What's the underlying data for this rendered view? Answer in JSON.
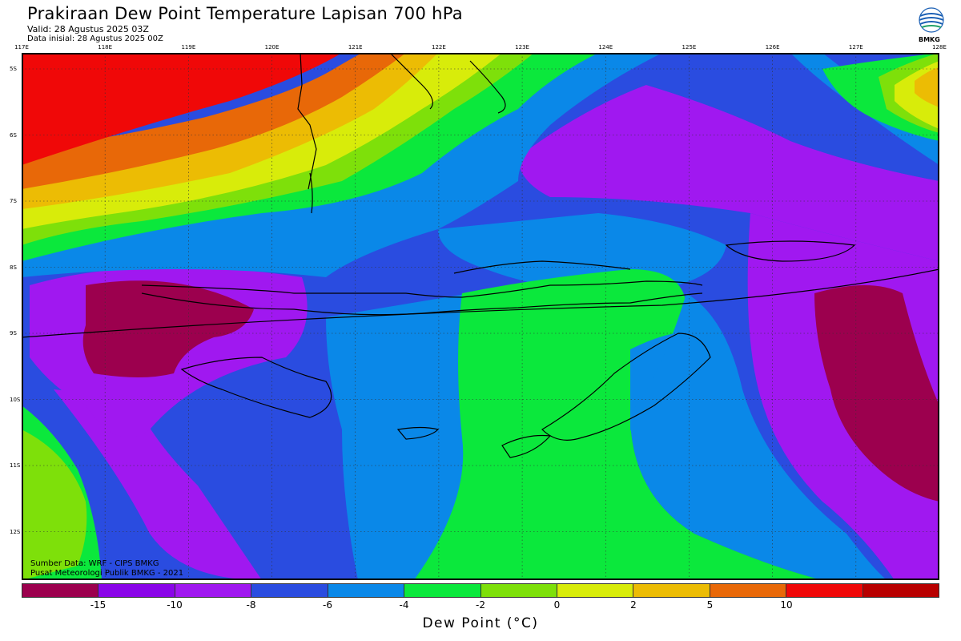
{
  "header": {
    "title": "Prakiraan Dew Point Temperature Lapisan 700 hPa",
    "valid": "Valid: 28 Agustus 2025 03Z",
    "init": "Data inisial: 28 Agustus 2025 00Z"
  },
  "logo": {
    "label": "BMKG",
    "icon": "bmkg-logo-icon"
  },
  "map": {
    "lon_labels": [
      "117E",
      "118E",
      "119E",
      "120E",
      "121E",
      "122E",
      "123E",
      "124E",
      "125E",
      "126E",
      "127E",
      "128E"
    ],
    "lat_labels": [
      "5S",
      "6S",
      "7S",
      "8S",
      "9S",
      "10S",
      "11S",
      "12S"
    ],
    "grid": true
  },
  "source": {
    "line1": "Sumber Data: WRF - CIPS BMKG",
    "line2": "Pusat Meteorologi Publik BMKG - 2021"
  },
  "legend": {
    "colors": [
      "#9c004e",
      "#8a05e8",
      "#a018f0",
      "#2a4ce0",
      "#0a88e8",
      "#0be83c",
      "#7ee00a",
      "#d8ec0a",
      "#ecbc04",
      "#e86808",
      "#f00808",
      "#b80000"
    ],
    "ticks": [
      "-15",
      "-10",
      "-8",
      "-6",
      "-4",
      "-2",
      "0",
      "2",
      "5",
      "10"
    ],
    "title": "Dew Point (°C)"
  }
}
